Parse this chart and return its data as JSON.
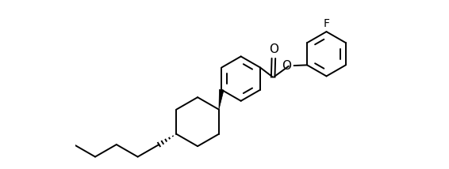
{
  "line_color": "#000000",
  "background_color": "#ffffff",
  "lw": 1.4,
  "lw_thick": 3.5,
  "font_size": 10,
  "label_F": "F",
  "label_O_carbonyl": "O",
  "label_O_ester": "O",
  "xlim": [
    -0.2,
    10.5
  ],
  "ylim": [
    -2.2,
    3.8
  ],
  "figsize": [
    5.66,
    2.14
  ],
  "dpi": 100
}
